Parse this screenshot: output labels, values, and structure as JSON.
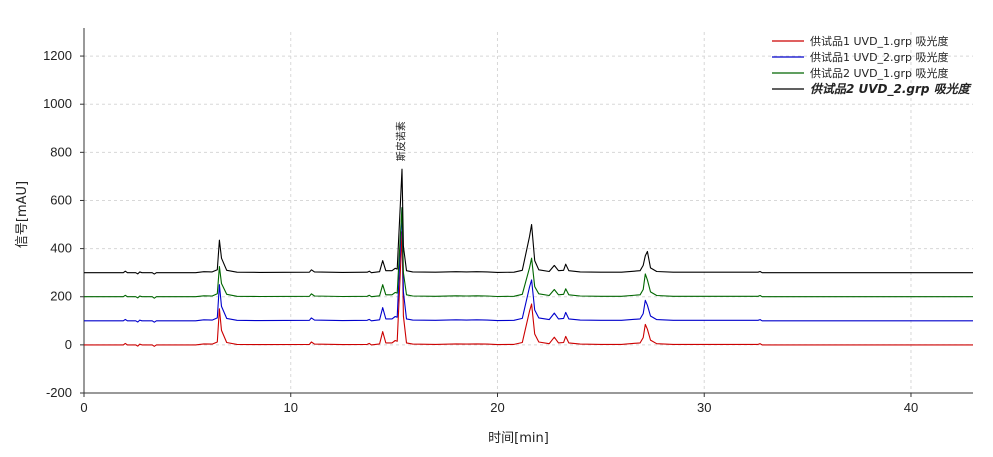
{
  "chart_data": {
    "type": "line",
    "title": "",
    "xlabel": "时间[min]",
    "ylabel": "信号[mAU]",
    "xlim": [
      0,
      43
    ],
    "ylim": [
      -200,
      1300
    ],
    "xticks": [
      0,
      10,
      20,
      30,
      40
    ],
    "yticks": [
      -200,
      0,
      200,
      400,
      600,
      800,
      1000,
      1200
    ],
    "grid": true,
    "legend_position": "top-right",
    "annotation": {
      "label": "斯皮诺素",
      "x": 15.4
    },
    "series": [
      {
        "name": "供试品1 UVD_1.grp 吸光度",
        "color": "#cc0000",
        "bold": false,
        "offset": 0,
        "points": [
          [
            0,
            0
          ],
          [
            1.9,
            0
          ],
          [
            2.0,
            6
          ],
          [
            2.1,
            0
          ],
          [
            2.5,
            0
          ],
          [
            2.6,
            -5
          ],
          [
            2.7,
            3
          ],
          [
            2.8,
            0
          ],
          [
            3.3,
            0
          ],
          [
            3.4,
            -6
          ],
          [
            3.5,
            0
          ],
          [
            5.4,
            0
          ],
          [
            5.8,
            4
          ],
          [
            6.2,
            3
          ],
          [
            6.45,
            12
          ],
          [
            6.55,
            150
          ],
          [
            6.65,
            60
          ],
          [
            6.9,
            10
          ],
          [
            7.4,
            2
          ],
          [
            8.5,
            1
          ],
          [
            10.9,
            2
          ],
          [
            11.0,
            12
          ],
          [
            11.15,
            3
          ],
          [
            12.5,
            1
          ],
          [
            13.7,
            2
          ],
          [
            13.8,
            6
          ],
          [
            13.9,
            0
          ],
          [
            14.3,
            4
          ],
          [
            14.45,
            55
          ],
          [
            14.6,
            8
          ],
          [
            14.9,
            8
          ],
          [
            15.05,
            18
          ],
          [
            15.15,
            15
          ],
          [
            15.3,
            300
          ],
          [
            15.38,
            470
          ],
          [
            15.45,
            120
          ],
          [
            15.6,
            8
          ],
          [
            15.9,
            3
          ],
          [
            17.0,
            2
          ],
          [
            18.0,
            4
          ],
          [
            18.5,
            3
          ],
          [
            19.0,
            4
          ],
          [
            19.5,
            3
          ],
          [
            20.0,
            1
          ],
          [
            20.8,
            2
          ],
          [
            21.2,
            10
          ],
          [
            21.55,
            140
          ],
          [
            21.65,
            170
          ],
          [
            21.8,
            45
          ],
          [
            22.0,
            12
          ],
          [
            22.5,
            5
          ],
          [
            22.75,
            32
          ],
          [
            22.95,
            8
          ],
          [
            23.2,
            10
          ],
          [
            23.3,
            35
          ],
          [
            23.45,
            8
          ],
          [
            24.0,
            3
          ],
          [
            25.0,
            2
          ],
          [
            26.0,
            2
          ],
          [
            26.9,
            8
          ],
          [
            27.05,
            30
          ],
          [
            27.15,
            85
          ],
          [
            27.25,
            65
          ],
          [
            27.4,
            20
          ],
          [
            27.7,
            5
          ],
          [
            28.5,
            2
          ],
          [
            32.6,
            2
          ],
          [
            32.7,
            5
          ],
          [
            32.8,
            0
          ],
          [
            34.0,
            0
          ],
          [
            43,
            0
          ]
        ]
      },
      {
        "name": "供试品1 UVD_2.grp 吸光度",
        "color": "#0000cc",
        "bold": false,
        "offset": 100,
        "points": [
          [
            0,
            0
          ],
          [
            1.9,
            0
          ],
          [
            2.0,
            6
          ],
          [
            2.1,
            0
          ],
          [
            2.5,
            0
          ],
          [
            2.6,
            -5
          ],
          [
            2.7,
            3
          ],
          [
            2.8,
            0
          ],
          [
            3.3,
            0
          ],
          [
            3.4,
            -6
          ],
          [
            3.5,
            0
          ],
          [
            5.4,
            0
          ],
          [
            5.8,
            4
          ],
          [
            6.2,
            3
          ],
          [
            6.45,
            12
          ],
          [
            6.55,
            150
          ],
          [
            6.65,
            60
          ],
          [
            6.9,
            10
          ],
          [
            7.4,
            2
          ],
          [
            8.5,
            1
          ],
          [
            10.9,
            2
          ],
          [
            11.0,
            12
          ],
          [
            11.15,
            3
          ],
          [
            12.5,
            1
          ],
          [
            13.7,
            2
          ],
          [
            13.8,
            6
          ],
          [
            13.9,
            0
          ],
          [
            14.3,
            4
          ],
          [
            14.45,
            55
          ],
          [
            14.6,
            8
          ],
          [
            14.9,
            8
          ],
          [
            15.05,
            18
          ],
          [
            15.15,
            15
          ],
          [
            15.3,
            300
          ],
          [
            15.38,
            470
          ],
          [
            15.45,
            120
          ],
          [
            15.6,
            8
          ],
          [
            15.9,
            3
          ],
          [
            17.0,
            2
          ],
          [
            18.0,
            4
          ],
          [
            18.5,
            3
          ],
          [
            19.0,
            4
          ],
          [
            19.5,
            3
          ],
          [
            20.0,
            1
          ],
          [
            20.8,
            2
          ],
          [
            21.2,
            10
          ],
          [
            21.55,
            140
          ],
          [
            21.65,
            170
          ],
          [
            21.8,
            45
          ],
          [
            22.0,
            12
          ],
          [
            22.5,
            5
          ],
          [
            22.75,
            32
          ],
          [
            22.95,
            8
          ],
          [
            23.2,
            10
          ],
          [
            23.3,
            35
          ],
          [
            23.45,
            8
          ],
          [
            24.0,
            3
          ],
          [
            25.0,
            2
          ],
          [
            26.0,
            2
          ],
          [
            26.9,
            8
          ],
          [
            27.05,
            30
          ],
          [
            27.15,
            85
          ],
          [
            27.25,
            65
          ],
          [
            27.4,
            20
          ],
          [
            27.7,
            5
          ],
          [
            28.5,
            2
          ],
          [
            32.6,
            2
          ],
          [
            32.7,
            5
          ],
          [
            32.8,
            0
          ],
          [
            34.0,
            0
          ],
          [
            43,
            0
          ]
        ]
      },
      {
        "name": "供试品2 UVD_1.grp 吸光度",
        "color": "#006600",
        "bold": false,
        "offset": 200,
        "points": [
          [
            0,
            0
          ],
          [
            1.9,
            0
          ],
          [
            2.0,
            6
          ],
          [
            2.1,
            0
          ],
          [
            2.5,
            0
          ],
          [
            2.6,
            -5
          ],
          [
            2.7,
            3
          ],
          [
            2.8,
            0
          ],
          [
            3.3,
            0
          ],
          [
            3.4,
            -6
          ],
          [
            3.5,
            0
          ],
          [
            5.4,
            0
          ],
          [
            5.8,
            4
          ],
          [
            6.2,
            3
          ],
          [
            6.45,
            12
          ],
          [
            6.55,
            125
          ],
          [
            6.65,
            55
          ],
          [
            6.9,
            10
          ],
          [
            7.4,
            2
          ],
          [
            8.5,
            1
          ],
          [
            10.9,
            2
          ],
          [
            11.0,
            12
          ],
          [
            11.15,
            3
          ],
          [
            12.5,
            1
          ],
          [
            13.7,
            2
          ],
          [
            13.8,
            6
          ],
          [
            13.9,
            0
          ],
          [
            14.3,
            4
          ],
          [
            14.45,
            50
          ],
          [
            14.6,
            8
          ],
          [
            14.9,
            8
          ],
          [
            15.05,
            18
          ],
          [
            15.15,
            15
          ],
          [
            15.3,
            250
          ],
          [
            15.38,
            370
          ],
          [
            15.45,
            100
          ],
          [
            15.6,
            8
          ],
          [
            15.9,
            3
          ],
          [
            17.0,
            2
          ],
          [
            18.0,
            4
          ],
          [
            18.5,
            3
          ],
          [
            19.0,
            4
          ],
          [
            19.5,
            3
          ],
          [
            20.0,
            1
          ],
          [
            20.8,
            2
          ],
          [
            21.2,
            10
          ],
          [
            21.55,
            120
          ],
          [
            21.65,
            160
          ],
          [
            21.8,
            42
          ],
          [
            22.0,
            12
          ],
          [
            22.5,
            5
          ],
          [
            22.75,
            30
          ],
          [
            22.95,
            8
          ],
          [
            23.2,
            10
          ],
          [
            23.3,
            33
          ],
          [
            23.45,
            8
          ],
          [
            24.0,
            3
          ],
          [
            25.0,
            2
          ],
          [
            26.0,
            2
          ],
          [
            26.9,
            8
          ],
          [
            27.05,
            30
          ],
          [
            27.15,
            95
          ],
          [
            27.25,
            70
          ],
          [
            27.4,
            20
          ],
          [
            27.7,
            5
          ],
          [
            28.5,
            2
          ],
          [
            32.6,
            2
          ],
          [
            32.7,
            5
          ],
          [
            32.8,
            0
          ],
          [
            34.0,
            0
          ],
          [
            43,
            0
          ]
        ]
      },
      {
        "name": "供试品2 UVD_2.grp 吸光度",
        "color": "#000000",
        "bold": true,
        "offset": 300,
        "points": [
          [
            0,
            0
          ],
          [
            1.9,
            0
          ],
          [
            2.0,
            6
          ],
          [
            2.1,
            0
          ],
          [
            2.5,
            0
          ],
          [
            2.6,
            -5
          ],
          [
            2.7,
            3
          ],
          [
            2.8,
            0
          ],
          [
            3.3,
            0
          ],
          [
            3.4,
            -6
          ],
          [
            3.5,
            0
          ],
          [
            5.4,
            0
          ],
          [
            5.8,
            4
          ],
          [
            6.2,
            3
          ],
          [
            6.45,
            12
          ],
          [
            6.55,
            135
          ],
          [
            6.65,
            60
          ],
          [
            6.9,
            10
          ],
          [
            7.4,
            2
          ],
          [
            8.5,
            1
          ],
          [
            10.9,
            2
          ],
          [
            11.0,
            12
          ],
          [
            11.15,
            3
          ],
          [
            12.5,
            1
          ],
          [
            13.7,
            2
          ],
          [
            13.8,
            6
          ],
          [
            13.9,
            0
          ],
          [
            14.3,
            4
          ],
          [
            14.45,
            50
          ],
          [
            14.6,
            8
          ],
          [
            14.9,
            8
          ],
          [
            15.05,
            18
          ],
          [
            15.15,
            15
          ],
          [
            15.3,
            280
          ],
          [
            15.38,
            430
          ],
          [
            15.45,
            110
          ],
          [
            15.6,
            8
          ],
          [
            15.9,
            3
          ],
          [
            17.0,
            2
          ],
          [
            18.0,
            4
          ],
          [
            18.5,
            3
          ],
          [
            19.0,
            4
          ],
          [
            19.5,
            3
          ],
          [
            20.0,
            1
          ],
          [
            20.8,
            2
          ],
          [
            21.2,
            10
          ],
          [
            21.55,
            150
          ],
          [
            21.65,
            200
          ],
          [
            21.8,
            50
          ],
          [
            22.0,
            12
          ],
          [
            22.5,
            5
          ],
          [
            22.75,
            30
          ],
          [
            22.95,
            8
          ],
          [
            23.2,
            10
          ],
          [
            23.3,
            35
          ],
          [
            23.45,
            8
          ],
          [
            24.0,
            3
          ],
          [
            25.0,
            2
          ],
          [
            26.0,
            2
          ],
          [
            26.9,
            8
          ],
          [
            27.05,
            30
          ],
          [
            27.15,
            70
          ],
          [
            27.25,
            88
          ],
          [
            27.4,
            20
          ],
          [
            27.7,
            5
          ],
          [
            28.5,
            2
          ],
          [
            32.6,
            2
          ],
          [
            32.7,
            5
          ],
          [
            32.8,
            0
          ],
          [
            34.0,
            0
          ],
          [
            43,
            0
          ]
        ]
      }
    ]
  }
}
